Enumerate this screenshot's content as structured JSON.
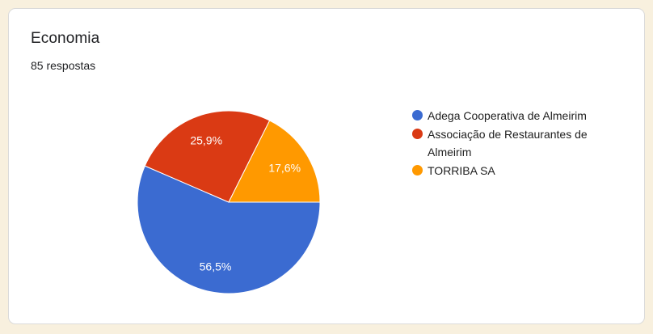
{
  "card": {
    "title": "Economia",
    "subtitle": "85 respostas"
  },
  "chart_data": {
    "type": "pie",
    "title": "Economia",
    "subtitle": "85 respostas",
    "responses_count": 85,
    "start_angle_deg": 0,
    "direction": "clockwise",
    "legend_position": "right",
    "slice_label_color": "#FFFFFF",
    "slice_label_font_px": 14,
    "slices": [
      {
        "label": "Adega Cooperativa de Almeirim",
        "pct": 56.5,
        "pct_label": "56,5%",
        "color": "#3B6BD1"
      },
      {
        "label": "Associação de Restaurantes de Almeirim",
        "pct": 25.9,
        "pct_label": "25,9%",
        "color": "#DA3A14"
      },
      {
        "label": "TORRIBA SA",
        "pct": 17.6,
        "pct_label": "17,6%",
        "color": "#FF9900"
      }
    ]
  },
  "theme": {
    "page_background": "#F8F0DE",
    "card_background": "#FFFFFF",
    "card_border": "#DADADA"
  }
}
